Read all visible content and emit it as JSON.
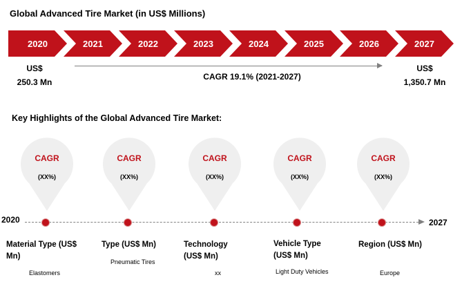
{
  "title": "Global Advanced Tire Market (in US$ Millions)",
  "colors": {
    "accent": "#c0121b",
    "line": "#808080",
    "pin": "#efefef"
  },
  "years": [
    "2020",
    "2021",
    "2022",
    "2023",
    "2024",
    "2025",
    "2026",
    "2027"
  ],
  "start_value": {
    "line1": "US$",
    "line2": "250.3 Mn"
  },
  "end_value": {
    "line1": "US$",
    "line2": "1,350.7 Mn"
  },
  "cagr_text": "CAGR 19.1% (2021-2027)",
  "key_highlights_title": "Key Highlights of the Global Advanced Tire Market:",
  "highlights": [
    {
      "cagr": "CAGR",
      "value": "(XX%)",
      "segment": "Material Type (US$ Mn)",
      "example": "Elastomers"
    },
    {
      "cagr": "CAGR",
      "value": "(XX%)",
      "segment": "Type (US$ Mn)",
      "example": "Pneumatic Tires"
    },
    {
      "cagr": "CAGR",
      "value": "(XX%)",
      "segment": "Technology (US$ Mn)",
      "example": "xx"
    },
    {
      "cagr": "CAGR",
      "value": "(XX%)",
      "segment": "Vehicle Type (US$ Mn)",
      "example": "Light Duty Vehicles"
    },
    {
      "cagr": "CAGR",
      "value": "(XX%)",
      "segment": "Region (US$ Mn)",
      "example": "Europe"
    }
  ],
  "timeline": {
    "start": "2020",
    "end": "2027"
  },
  "chart_data": {
    "type": "line",
    "title": "Global Advanced Tire Market (in US$ Millions)",
    "x": [
      "2020",
      "2027"
    ],
    "series": [
      {
        "values": [
          250.3,
          1350.7
        ]
      }
    ],
    "annotations": [
      "CAGR 19.1% (2021-2027)"
    ],
    "xlabel": "",
    "ylabel": ""
  }
}
